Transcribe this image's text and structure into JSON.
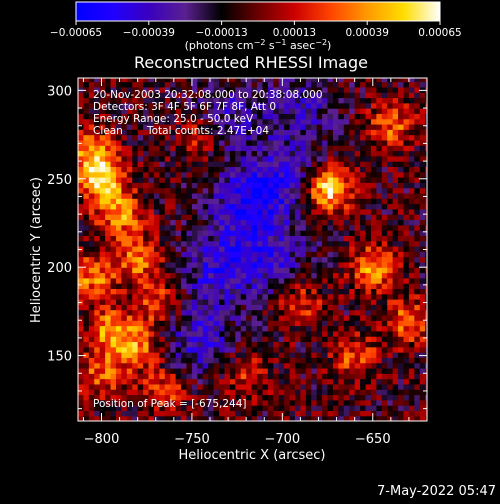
{
  "chart_data": {
    "type": "heatmap",
    "title": "Reconstructed RHESSI Image",
    "xlabel": "Heliocentric X (arcsec)",
    "ylabel": "Heliocentric Y (arcsec)",
    "xlim": [
      -813,
      -620
    ],
    "ylim": [
      113,
      307
    ],
    "x_ticks": [
      -800,
      -750,
      -700,
      -650
    ],
    "x_tick_labels": [
      "−800",
      "−750",
      "−700",
      "−650"
    ],
    "y_ticks": [
      150,
      200,
      250,
      300
    ],
    "y_tick_labels": [
      "150",
      "200",
      "250",
      "300"
    ],
    "colorbar": {
      "range": [
        -0.00065,
        0.00065
      ],
      "ticks": [
        -0.00065,
        -0.00039,
        -0.00013,
        0.00013,
        0.00039,
        0.00065
      ],
      "tick_labels": [
        "−0.00065",
        "−0.00039",
        "−0.00013",
        "0.00013",
        "0.00039",
        "0.00065"
      ],
      "colors": [
        "#0000ff",
        "#2000ff",
        "#3a00c0",
        "#5a2090",
        "#000000",
        "#6a0000",
        "#cc0000",
        "#ff4400",
        "#ff9900",
        "#ffdd00",
        "#ffffff"
      ]
    },
    "units_pre": "(photons cm",
    "units_exp1": "−2",
    "units_mid": " s",
    "units_exp2": "−1",
    "units_mid2": " asec",
    "units_exp3": "−2",
    "units_post": ")",
    "peak": {
      "x": -675,
      "y": 244
    },
    "hot_spots": [
      {
        "x": -800,
        "y": 250,
        "v": 0.85
      },
      {
        "x": -805,
        "y": 265,
        "v": 0.7
      },
      {
        "x": -790,
        "y": 230,
        "v": 0.7
      },
      {
        "x": -805,
        "y": 195,
        "v": 0.65
      },
      {
        "x": -780,
        "y": 205,
        "v": 0.6
      },
      {
        "x": -795,
        "y": 165,
        "v": 0.7
      },
      {
        "x": -780,
        "y": 155,
        "v": 0.6
      },
      {
        "x": -800,
        "y": 140,
        "v": 0.55
      },
      {
        "x": -770,
        "y": 180,
        "v": 0.5
      },
      {
        "x": -765,
        "y": 130,
        "v": 0.45
      },
      {
        "x": -675,
        "y": 244,
        "v": 1.0
      },
      {
        "x": -650,
        "y": 200,
        "v": 0.7
      },
      {
        "x": -630,
        "y": 170,
        "v": 0.6
      },
      {
        "x": -640,
        "y": 280,
        "v": 0.55
      },
      {
        "x": -660,
        "y": 150,
        "v": 0.5
      },
      {
        "x": -720,
        "y": 140,
        "v": 0.4
      },
      {
        "x": -690,
        "y": 180,
        "v": 0.45
      },
      {
        "x": -745,
        "y": 275,
        "v": 0.4
      }
    ],
    "cold_spots": [
      {
        "x": -720,
        "y": 235,
        "v": -0.6
      },
      {
        "x": -735,
        "y": 200,
        "v": -0.55
      },
      {
        "x": -700,
        "y": 250,
        "v": -0.5
      },
      {
        "x": -745,
        "y": 160,
        "v": -0.5
      },
      {
        "x": -705,
        "y": 205,
        "v": -0.45
      },
      {
        "x": -730,
        "y": 285,
        "v": -0.4
      },
      {
        "x": -690,
        "y": 290,
        "v": -0.4
      }
    ]
  },
  "info": {
    "time_range": "20-Nov-2003 20:32:08.000 to 20:38:08.000",
    "detectors": "Detectors: 3F 4F 5F 6F 7F 8F, Att 0",
    "energy": "Energy Range: 25.0 - 50.0 keV",
    "clean_label": "Clean",
    "counts": "Total counts: 2.47E+04",
    "peak_label": "Position of Peak = [-675,244]"
  },
  "footer": {
    "timestamp": "7-May-2022 05:47"
  }
}
